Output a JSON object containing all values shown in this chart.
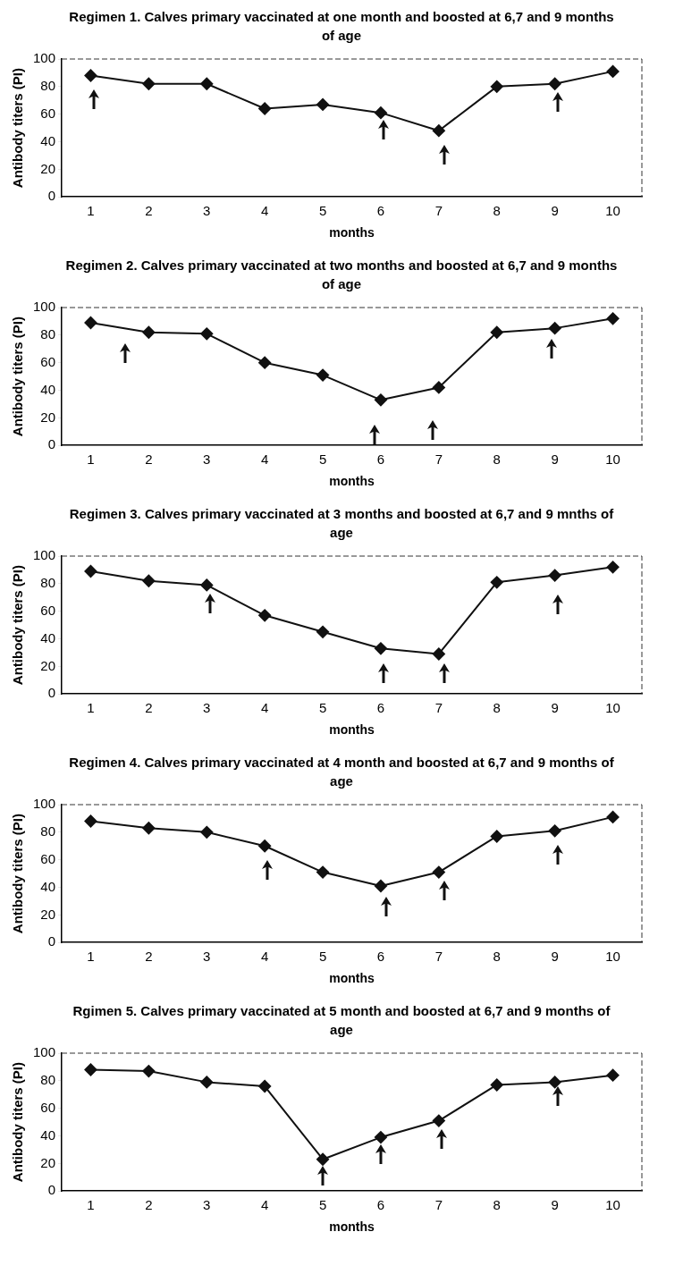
{
  "chart_data": [
    {
      "type": "line",
      "title": "Regimen 1. Calves primary vaccinated at one month and boosted at 6,7 and 9 months of age",
      "xlabel": "months",
      "ylabel": "Antibody titers (PI)",
      "categories": [
        "1",
        "2",
        "3",
        "4",
        "5",
        "6",
        "7",
        "8",
        "9",
        "10"
      ],
      "series": [
        {
          "color": "#111111",
          "values": [
            88,
            82,
            82,
            64,
            67,
            61,
            48,
            80,
            82,
            91
          ]
        }
      ],
      "ylim": [
        0,
        100
      ],
      "yticks": [
        0,
        20,
        40,
        60,
        80,
        100
      ],
      "grid": false,
      "legend": false,
      "marker": "diamond",
      "line_style": "solid"
    },
    {
      "type": "line",
      "title": "Regimen 2. Calves primary vaccinated at two months and boosted at 6,7 and 9 months of age",
      "xlabel": "months",
      "ylabel": "Antibody titers (PI)",
      "categories": [
        "1",
        "2",
        "3",
        "4",
        "5",
        "6",
        "7",
        "8",
        "9",
        "10"
      ],
      "series": [
        {
          "color": "#111111",
          "values": [
            89,
            82,
            81,
            60,
            51,
            33,
            42,
            82,
            85,
            92
          ]
        }
      ],
      "ylim": [
        0,
        100
      ],
      "yticks": [
        0,
        20,
        40,
        60,
        80,
        100
      ],
      "grid": false,
      "legend": false,
      "marker": "diamond",
      "line_style": "solid"
    },
    {
      "type": "line",
      "title": "Regimen 3. Calves primary vaccinated at 3 months and boosted at 6,7 and 9 mnths of age",
      "xlabel": "months",
      "ylabel": "Antibody titers (PI)",
      "categories": [
        "1",
        "2",
        "3",
        "4",
        "5",
        "6",
        "7",
        "8",
        "9",
        "10"
      ],
      "series": [
        {
          "color": "#111111",
          "values": [
            89,
            82,
            79,
            57,
            45,
            33,
            29,
            81,
            86,
            92
          ]
        }
      ],
      "ylim": [
        0,
        100
      ],
      "yticks": [
        0,
        20,
        40,
        60,
        80,
        100
      ],
      "grid": false,
      "legend": false,
      "marker": "diamond",
      "line_style": "solid"
    },
    {
      "type": "line",
      "title": "Regimen 4. Calves primary vaccinated at 4 month and boosted at 6,7 and 9 months of age",
      "xlabel": "months",
      "ylabel": "Antibody titers (PI)",
      "categories": [
        "1",
        "2",
        "3",
        "4",
        "5",
        "6",
        "7",
        "8",
        "9",
        "10"
      ],
      "series": [
        {
          "color": "#111111",
          "values": [
            88,
            83,
            80,
            70,
            51,
            41,
            51,
            77,
            81,
            91
          ]
        }
      ],
      "ylim": [
        0,
        100
      ],
      "yticks": [
        0,
        20,
        40,
        60,
        80,
        100
      ],
      "grid": false,
      "legend": false,
      "marker": "diamond",
      "line_style": "solid"
    },
    {
      "type": "line",
      "title": "Rgimen 5. Calves primary vaccinated at 5 month and boosted at 6,7 and 9 months of age",
      "xlabel": "months",
      "ylabel": "Antibody titers (PI)",
      "categories": [
        "1",
        "2",
        "3",
        "4",
        "5",
        "6",
        "7",
        "8",
        "9",
        "10"
      ],
      "series": [
        {
          "color": "#111111",
          "values": [
            88,
            87,
            79,
            76,
            23,
            39,
            51,
            77,
            79,
            84
          ]
        }
      ],
      "ylim": [
        0,
        100
      ],
      "yticks": [
        0,
        20,
        40,
        60,
        80,
        100
      ],
      "grid": false,
      "legend": false,
      "marker": "diamond",
      "line_style": "solid"
    }
  ]
}
